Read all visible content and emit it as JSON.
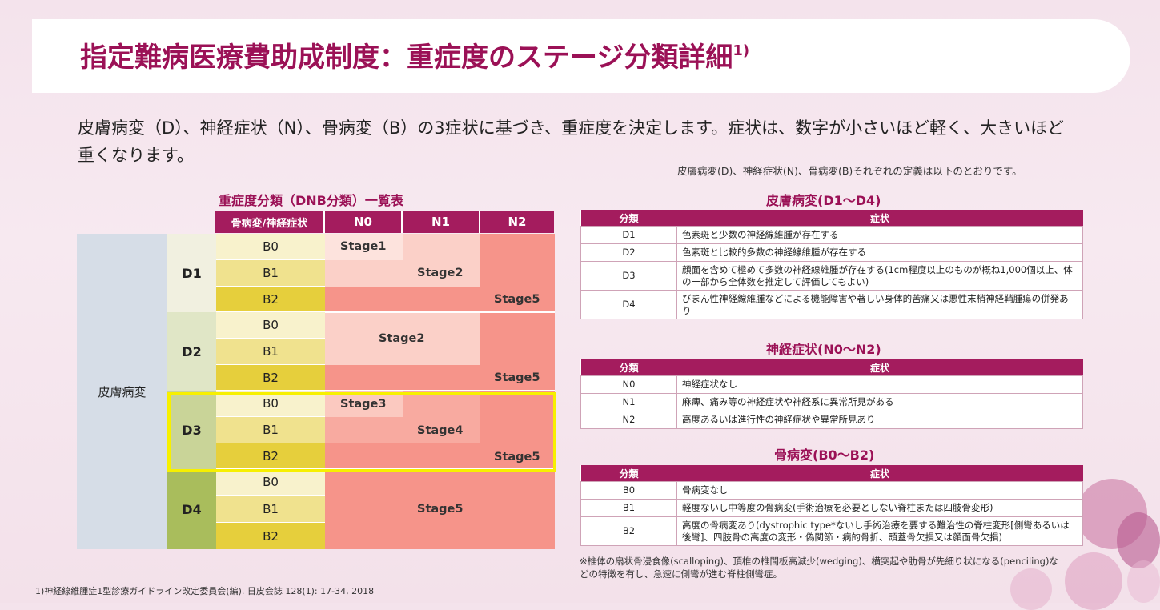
{
  "title": "指定難病医療費助成制度：重症度のステージ分類詳細",
  "title_ref": "1)",
  "intro": "皮膚病変（D）、神経症状（N）、骨病変（B）の3症状に基づき、重症度を決定します。症状は、数字が小さいほど軽く、大きいほど重くなります。",
  "definition_caption": "皮膚病変(D)、神経症状(N)、骨病変(B)それぞれの定義は以下のとおりです。",
  "dnb_table": {
    "title": "重症度分類（DNB分類）一覧表",
    "header": [
      "骨病変/神経症状",
      "N0",
      "N1",
      "N2"
    ],
    "row_group_label": "皮膚病変",
    "d_labels": [
      "D1",
      "D2",
      "D3",
      "D4"
    ],
    "b_labels": [
      "B0",
      "B1",
      "B2"
    ],
    "stages": {
      "d1_s1": "Stage1",
      "d1_s2": "Stage2",
      "d1_s5": "Stage5",
      "d2_s2": "Stage2",
      "d2_s5": "Stage5",
      "d3_s3": "Stage3",
      "d3_s4": "Stage4",
      "d3_s5": "Stage5",
      "d4_s5": "Stage5"
    },
    "highlight_row": "D3",
    "colors": {
      "header": "#a41c5e",
      "stage1": "#fde3dd",
      "stage2": "#fbd0c8",
      "stage3": "#fbc9c0",
      "stage4": "#f8aaa0",
      "stage5": "#f6948a",
      "highlight": "#f7f000"
    }
  },
  "skin": {
    "title": "皮膚病変(D1～D4)",
    "header": [
      "分類",
      "症状"
    ],
    "rows": [
      {
        "code": "D1",
        "text": "色素斑と少数の神経線維腫が存在する"
      },
      {
        "code": "D2",
        "text": "色素斑と比較的多数の神経線維腫が存在する"
      },
      {
        "code": "D3",
        "text": "顔面を含めて極めて多数の神経線維腫が存在する(1cm程度以上のものが概ね1,000個以上、体の一部から全体数を推定して評価してもよい)"
      },
      {
        "code": "D4",
        "text": "びまん性神経線維腫などによる機能障害や著しい身体的苦痛又は悪性末梢神経鞘腫瘍の併発あり"
      }
    ]
  },
  "nerve": {
    "title": "神経症状(N0～N2)",
    "header": [
      "分類",
      "症状"
    ],
    "rows": [
      {
        "code": "N0",
        "text": "神経症状なし"
      },
      {
        "code": "N1",
        "text": "麻痺、痛み等の神経症状や神経系に異常所見がある"
      },
      {
        "code": "N2",
        "text": "高度あるいは進行性の神経症状や異常所見あり"
      }
    ]
  },
  "bone": {
    "title": "骨病変(B0～B2)",
    "header": [
      "分類",
      "症状"
    ],
    "rows": [
      {
        "code": "B0",
        "text": "骨病変なし"
      },
      {
        "code": "B1",
        "text": "軽度ないし中等度の骨病変(手術治療を必要としない脊柱または四肢骨変形)"
      },
      {
        "code": "B2",
        "text": "高度の骨病変あり(dystrophic type*ないし手術治療を要する難治性の脊柱変形[側彎あるいは後彎]、四肢骨の高度の変形・偽関節・病的骨折、頭蓋骨欠損又は顔面骨欠損)"
      }
    ]
  },
  "note": "※椎体の扇状骨浸食像(scalloping)、頂椎の椎間板高減少(wedging)、横突起や肋骨が先細り状になる(penciling)などの特徴を有し、急速に側彎が進む脊柱側彎症。",
  "footer": "1)神経線維腫症1型診療ガイドライン改定委員会(編). 日皮会誌 128(1): 17-34, 2018"
}
